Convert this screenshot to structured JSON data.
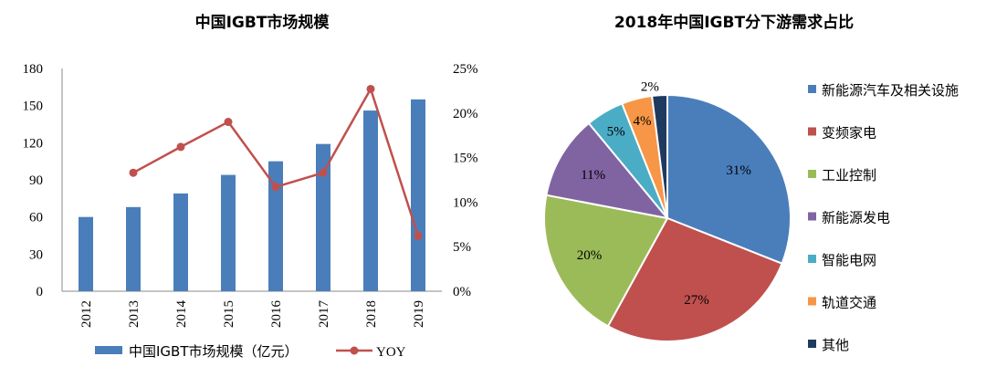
{
  "chart_data": [
    {
      "type": "bar",
      "title": "中国IGBT市场规模",
      "categories": [
        "2012",
        "2013",
        "2014",
        "2015",
        "2016",
        "2017",
        "2018",
        "2019"
      ],
      "ylim": [
        0,
        180
      ],
      "yticks": [
        "180",
        "150",
        "120",
        "90",
        "60",
        "30",
        "0"
      ],
      "y2lim": [
        0,
        25
      ],
      "y2ticks": [
        "25%",
        "20%",
        "15%",
        "10%",
        "5%",
        "0%"
      ],
      "series": [
        {
          "name": "中国IGBT市场规模（亿元）",
          "kind": "bar",
          "color": "#4a7ebb",
          "values": [
            60,
            68,
            79,
            94,
            105,
            119,
            146,
            155
          ]
        },
        {
          "name": "YOY",
          "kind": "line",
          "axis": "right",
          "color": "#c0504d",
          "values": [
            null,
            13.3,
            16.2,
            19.0,
            11.7,
            13.3,
            22.7,
            6.2
          ]
        }
      ],
      "legend": "bottom",
      "grid": false
    },
    {
      "type": "pie",
      "title": "2018年中国IGBT分下游需求占比",
      "legend": "right",
      "slices": [
        {
          "label": "新能源汽车及相关设施",
          "value": 31,
          "text": "31%",
          "color": "#4a7ebb"
        },
        {
          "label": "变频家电",
          "value": 27,
          "text": "27%",
          "color": "#c0504d"
        },
        {
          "label": "工业控制",
          "value": 20,
          "text": "20%",
          "color": "#9bbb59"
        },
        {
          "label": "新能源发电",
          "value": 11,
          "text": "11%",
          "color": "#8064a2"
        },
        {
          "label": "智能电网",
          "value": 5,
          "text": "5%",
          "color": "#4bacc6"
        },
        {
          "label": "轨道交通",
          "value": 4,
          "text": "4%",
          "color": "#f79646"
        },
        {
          "label": "其他",
          "value": 2,
          "text": "2%",
          "color": "#1f3a5f"
        }
      ]
    }
  ]
}
